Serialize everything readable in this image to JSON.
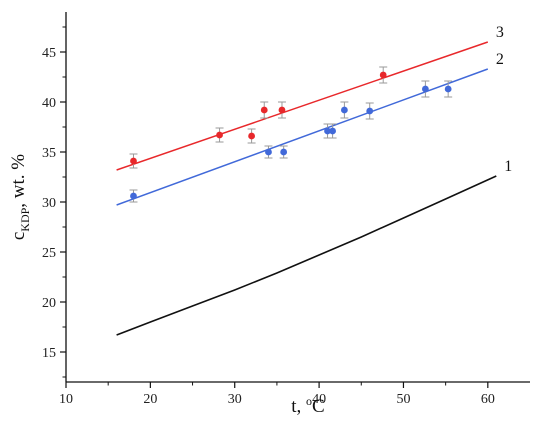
{
  "chart_data": {
    "type": "scatter",
    "title": "",
    "xlabel": {
      "main": "t, ",
      "sup": "o",
      "rest": "C"
    },
    "ylabel": {
      "main": "c",
      "sub": "KDP",
      "rest": ", wt. %"
    },
    "xlim": [
      10,
      65
    ],
    "ylim": [
      12,
      49
    ],
    "xticks": [
      10,
      20,
      30,
      40,
      50,
      60
    ],
    "yticks": [
      15,
      20,
      25,
      30,
      35,
      40,
      45
    ],
    "tick_labels_x": [
      "10",
      "20",
      "30",
      "40",
      "50",
      "60"
    ],
    "tick_labels_y": [
      "15",
      "20",
      "25",
      "30",
      "35",
      "40",
      "45"
    ],
    "grid": false,
    "series": [
      {
        "name": "1",
        "color": "#111111",
        "line": {
          "x": [
            16,
            20,
            25,
            30,
            35,
            40,
            45,
            50,
            55,
            61
          ],
          "y": [
            16.7,
            18.0,
            19.6,
            21.2,
            22.9,
            24.7,
            26.5,
            28.4,
            30.3,
            32.6
          ]
        },
        "points": []
      },
      {
        "name": "2",
        "color": "#4169d9",
        "line": {
          "x": [
            16,
            60
          ],
          "y": [
            29.7,
            43.3
          ]
        },
        "points": [
          {
            "x": 18.0,
            "y": 30.6,
            "err": 0.6
          },
          {
            "x": 34.0,
            "y": 35.0,
            "err": 0.6
          },
          {
            "x": 35.8,
            "y": 35.0,
            "err": 0.6
          },
          {
            "x": 41.0,
            "y": 37.1,
            "err": 0.7
          },
          {
            "x": 41.6,
            "y": 37.1,
            "err": 0.7
          },
          {
            "x": 43.0,
            "y": 39.2,
            "err": 0.8
          },
          {
            "x": 46.0,
            "y": 39.1,
            "err": 0.8
          },
          {
            "x": 52.6,
            "y": 41.3,
            "err": 0.8
          },
          {
            "x": 55.3,
            "y": 41.3,
            "err": 0.8
          }
        ]
      },
      {
        "name": "3",
        "color": "#e8282b",
        "line": {
          "x": [
            16,
            60
          ],
          "y": [
            33.2,
            46.0
          ]
        },
        "points": [
          {
            "x": 18.0,
            "y": 34.1,
            "err": 0.7
          },
          {
            "x": 28.2,
            "y": 36.7,
            "err": 0.7
          },
          {
            "x": 32.0,
            "y": 36.6,
            "err": 0.7
          },
          {
            "x": 33.5,
            "y": 39.2,
            "err": 0.8
          },
          {
            "x": 35.6,
            "y": 39.2,
            "err": 0.8
          },
          {
            "x": 47.6,
            "y": 42.7,
            "err": 0.8
          }
        ]
      }
    ]
  }
}
